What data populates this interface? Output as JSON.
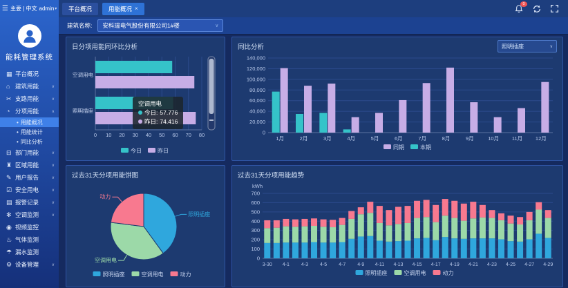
{
  "topbar": {
    "hamburger_glyph": "☰",
    "menu_label": "主要 | 中文",
    "user": "admin",
    "user_caret": "▾",
    "tabs": [
      {
        "label": "平台概况",
        "active": false,
        "closable": false
      },
      {
        "label": "用能概况",
        "active": true,
        "closable": true
      }
    ],
    "close_glyph": "×",
    "notification_count": "0"
  },
  "sidebar": {
    "system_title": "能耗管理系统",
    "sub_bullet": "•",
    "items": [
      {
        "label": "平台概况",
        "glyph": "▦",
        "chevron": ""
      },
      {
        "label": "建筑用能",
        "glyph": "⌂",
        "chevron": "∨"
      },
      {
        "label": "支路用能",
        "glyph": "✂",
        "chevron": "∨"
      },
      {
        "label": "分项用能",
        "glyph": "◔",
        "chevron": "∧",
        "children": [
          {
            "label": "用能概况",
            "active": true
          },
          {
            "label": "用能统计",
            "active": false
          },
          {
            "label": "同比分析",
            "active": false
          }
        ]
      },
      {
        "label": "部门用能",
        "glyph": "⊟",
        "chevron": "∨"
      },
      {
        "label": "区域用能",
        "glyph": "♜",
        "chevron": "∨"
      },
      {
        "label": "用户报告",
        "glyph": "✎",
        "chevron": "∨"
      },
      {
        "label": "安全用电",
        "glyph": "☑",
        "chevron": "∨"
      },
      {
        "label": "报警记录",
        "glyph": "▤",
        "chevron": "∨"
      },
      {
        "label": "空调监测",
        "glyph": "✻",
        "chevron": "∨"
      },
      {
        "label": "视频监控",
        "glyph": "◉",
        "chevron": ""
      },
      {
        "label": "气体监测",
        "glyph": "♨",
        "chevron": ""
      },
      {
        "label": "漏水监测",
        "glyph": "☂",
        "chevron": ""
      },
      {
        "label": "设备管理",
        "glyph": "⚙",
        "chevron": "∨"
      }
    ]
  },
  "filter": {
    "label": "建筑名称:",
    "value": "安科瑞电气股份有限公司1#楼",
    "caret": "∨"
  },
  "colors": {
    "teal": "#35c3c9",
    "purple": "#c7ade6",
    "blue": "#2fa7dd",
    "green": "#9cd9a8",
    "pink": "#f8798f",
    "accent": "#2e72d6",
    "badge": "#f25555",
    "grid_line": "#2c4b8c",
    "axis_line": "#5a729f",
    "axis_text": "#b9c9ea"
  },
  "tooltip": {
    "title": "空调用电",
    "rows": [
      {
        "label": "今日:",
        "value": "57.776",
        "color": "#35c3c9"
      },
      {
        "label": "昨日:",
        "value": "74.416",
        "color": "#c7ade6"
      }
    ]
  },
  "chart_data": [
    {
      "id": "daily_item_compare",
      "type": "bar",
      "orientation": "horizontal",
      "title": "日分项用能同环比分析",
      "categories": [
        "空调用电",
        "照明插座"
      ],
      "series": [
        {
          "name": "今日",
          "color": "#35c3c9",
          "values": [
            57.776,
            58.5
          ]
        },
        {
          "name": "昨日",
          "color": "#c7ade6",
          "values": [
            74.416,
            75.5
          ]
        }
      ],
      "xlim": [
        0,
        80
      ],
      "xticks": [
        0,
        10,
        20,
        30,
        40,
        50,
        60,
        70,
        80
      ],
      "legend_position": "bottom",
      "grid": true,
      "datazoom": "right"
    },
    {
      "id": "month_compare",
      "type": "bar",
      "title": "同比分析",
      "selector": "照明插座",
      "categories": [
        "1月",
        "2月",
        "3月",
        "4月",
        "5月",
        "6月",
        "7月",
        "8月",
        "9月",
        "10月",
        "11月",
        "12月"
      ],
      "series": [
        {
          "name": "同期",
          "color": "#c7ade6",
          "values": [
            121000,
            88000,
            92000,
            29000,
            37000,
            61000,
            93000,
            122000,
            57000,
            29000,
            46000,
            95000
          ]
        },
        {
          "name": "本期",
          "color": "#35c3c9",
          "values": [
            77000,
            35000,
            37000,
            6000,
            0,
            0,
            0,
            0,
            0,
            0,
            0,
            0
          ]
        }
      ],
      "ylim": [
        0,
        140000
      ],
      "ytick_step": 20000,
      "legend_position": "bottom",
      "grid": true
    },
    {
      "id": "pie_31_days",
      "type": "pie",
      "title": "过去31天分项用能饼图",
      "slices": [
        {
          "label": "照明插座",
          "percent": 40,
          "color": "#2fa7dd"
        },
        {
          "label": "空调用电",
          "percent": 37,
          "color": "#9cd9a8"
        },
        {
          "label": "动力",
          "percent": 23,
          "color": "#f8798f"
        }
      ],
      "legend_position": "bottom"
    },
    {
      "id": "trend_31_days",
      "type": "bar",
      "stacked": true,
      "title": "过去31天分项用能趋势",
      "ylabel": "kWh",
      "ylim": [
        0,
        700
      ],
      "ytick_step": 100,
      "categories": [
        "3-30",
        "3-31",
        "4-1",
        "4-2",
        "4-3",
        "4-4",
        "4-5",
        "4-6",
        "4-7",
        "4-8",
        "4-9",
        "4-10",
        "4-11",
        "4-12",
        "4-13",
        "4-14",
        "4-15",
        "4-16",
        "4-17",
        "4-18",
        "4-19",
        "4-20",
        "4-21",
        "4-22",
        "4-23",
        "4-24",
        "4-25",
        "4-26",
        "4-27",
        "4-28",
        "4-29"
      ],
      "series": [
        {
          "name": "照明插座",
          "color": "#2fa7dd",
          "values": [
            165,
            165,
            170,
            170,
            170,
            175,
            170,
            170,
            175,
            210,
            235,
            240,
            190,
            180,
            185,
            190,
            215,
            220,
            195,
            230,
            215,
            210,
            215,
            215,
            215,
            205,
            185,
            180,
            205,
            265,
            220
          ]
        },
        {
          "name": "空调用电",
          "color": "#9cd9a8",
          "values": [
            160,
            165,
            175,
            170,
            175,
            175,
            170,
            165,
            185,
            215,
            240,
            250,
            190,
            175,
            185,
            190,
            220,
            225,
            195,
            230,
            220,
            195,
            215,
            225,
            220,
            205,
            190,
            185,
            205,
            260,
            215
          ]
        },
        {
          "name": "动力",
          "color": "#f8798f",
          "values": [
            85,
            80,
            80,
            80,
            80,
            80,
            80,
            80,
            75,
            85,
            75,
            120,
            185,
            165,
            185,
            185,
            185,
            185,
            185,
            180,
            185,
            185,
            180,
            135,
            85,
            75,
            85,
            80,
            90,
            80,
            85
          ]
        }
      ],
      "legend_position": "bottom",
      "grid": true
    }
  ]
}
